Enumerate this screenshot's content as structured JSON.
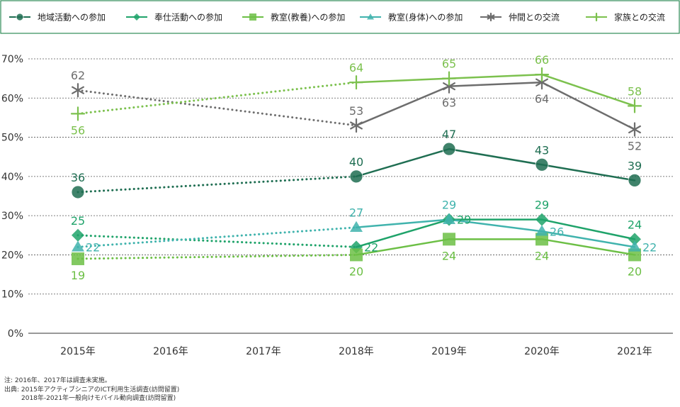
{
  "chart_data": {
    "type": "line",
    "categories": [
      "2015年",
      "2016年",
      "2017年",
      "2018年",
      "2019年",
      "2020年",
      "2021年"
    ],
    "ylim": [
      0,
      70
    ],
    "yticks": [
      "0%",
      "10%",
      "20%",
      "30%",
      "40%",
      "50%",
      "60%",
      "70%"
    ],
    "grid": true,
    "legend_position": "top",
    "series": [
      {
        "name": "地域活動への参加",
        "values": [
          36,
          null,
          null,
          40,
          47,
          43,
          39
        ],
        "labels": [
          "36",
          "",
          "",
          "40",
          "47",
          "43",
          "39"
        ],
        "label_pos": [
          "above",
          "",
          "",
          "above",
          "above",
          "above",
          "above"
        ],
        "color": "#1f6e52",
        "marker": "circle"
      },
      {
        "name": "奉仕活動への参加",
        "values": [
          25,
          null,
          null,
          22,
          29,
          29,
          24
        ],
        "labels": [
          "25",
          "",
          "",
          "22",
          "29",
          "29",
          "24"
        ],
        "label_pos": [
          "above",
          "",
          "",
          "right",
          "right",
          "above",
          "above"
        ],
        "color": "#1fa36a",
        "marker": "diamond"
      },
      {
        "name": "教室(教養)への参加",
        "values": [
          19,
          null,
          null,
          20,
          24,
          24,
          20
        ],
        "labels": [
          "19",
          "",
          "",
          "20",
          "24",
          "24",
          "20"
        ],
        "label_pos": [
          "below",
          "",
          "",
          "below",
          "below",
          "below",
          "below"
        ],
        "color": "#6cbf45",
        "marker": "square"
      },
      {
        "name": "教室(身体)への参加",
        "values": [
          22,
          null,
          null,
          27,
          29,
          26,
          22
        ],
        "labels": [
          "22",
          "",
          "",
          "27",
          "29",
          "26",
          "22"
        ],
        "label_pos": [
          "right",
          "",
          "",
          "above",
          "above",
          "right",
          "right"
        ],
        "color": "#40b3ad",
        "marker": "triangle"
      },
      {
        "name": "仲間との交流",
        "values": [
          62,
          null,
          null,
          53,
          63,
          64,
          52
        ],
        "labels": [
          "62",
          "",
          "",
          "53",
          "63",
          "64",
          "52"
        ],
        "label_pos": [
          "above",
          "",
          "",
          "above",
          "below",
          "below",
          "below"
        ],
        "color": "#6d6d6d",
        "marker": "star"
      },
      {
        "name": "家族との交流",
        "values": [
          56,
          null,
          null,
          64,
          65,
          66,
          58
        ],
        "labels": [
          "56",
          "",
          "",
          "64",
          "65",
          "66",
          "58"
        ],
        "label_pos": [
          "below",
          "",
          "",
          "above",
          "above",
          "above",
          "above"
        ],
        "color": "#7cc14e",
        "marker": "plus"
      }
    ]
  },
  "notes": {
    "line1": "注: 2016年、2017年は調査未実施。",
    "line2": "出典: 2015年アクティブシニアのICT利用生活調査(訪問留置)",
    "line3": "2018年-2021年一般向けモバイル動向調査(訪問留置)"
  },
  "colors": {
    "legend_border": "#2e8b57",
    "grid": "#555555",
    "axis_text": "#333333"
  }
}
